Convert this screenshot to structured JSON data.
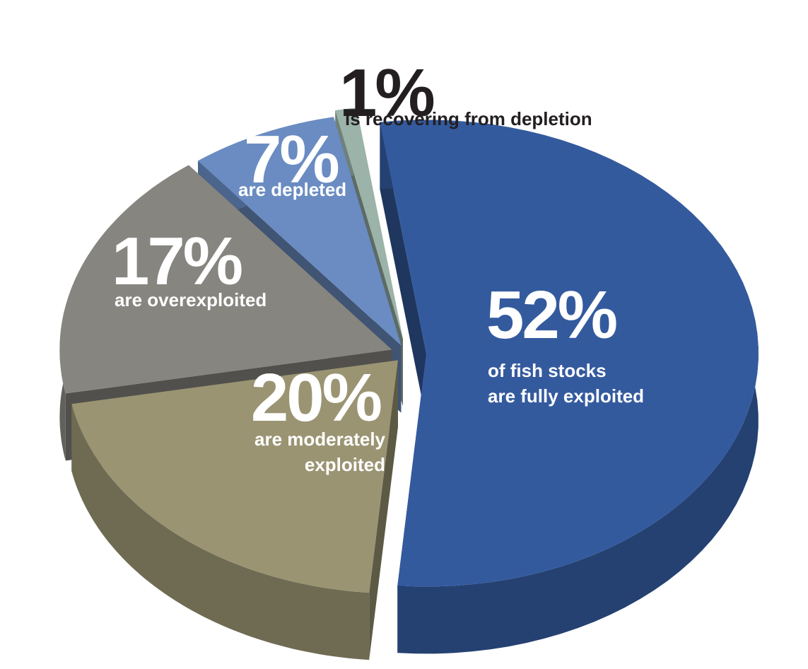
{
  "chart_data": {
    "type": "pie3d",
    "categories": [
      "of fish stocks\nare fully exploited",
      "are moderately\nexploited",
      "are overexploited",
      "are depleted",
      "is recovering from depletion"
    ],
    "values": [
      52,
      20,
      17,
      7,
      1
    ],
    "value_labels": [
      "52%",
      "20%",
      "17%",
      "7%",
      "1%"
    ],
    "colors": [
      "#345a9e",
      "#9a9473",
      "#878580",
      "#6a8cc2",
      "#9bb3a8"
    ]
  }
}
